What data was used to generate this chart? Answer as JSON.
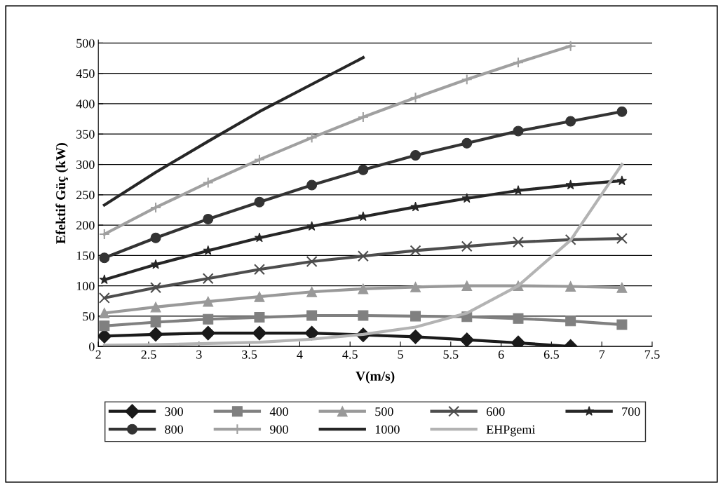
{
  "chart_data": {
    "type": "line",
    "xlabel": "V(m/s)",
    "ylabel": "Efektif Güç (kW)",
    "x": [
      2.06,
      2.57,
      3.09,
      3.6,
      4.12,
      4.63,
      5.15,
      5.66,
      6.17,
      6.69,
      7.2
    ],
    "xlim": [
      2,
      7.5
    ],
    "xticks": [
      2,
      2.5,
      3,
      3.5,
      4,
      4.5,
      5,
      5.5,
      6,
      6.5,
      7,
      7.5
    ],
    "ylim": [
      0,
      505
    ],
    "yticks": [
      0,
      50,
      100,
      150,
      200,
      250,
      300,
      350,
      400,
      450,
      500
    ],
    "grid": "y",
    "legend": "bottom",
    "series": [
      {
        "name": "300",
        "color": "#1a1a1a",
        "marker": "diamond",
        "values": [
          17,
          20,
          22,
          22,
          22,
          19,
          16,
          11,
          6,
          0,
          null
        ]
      },
      {
        "name": "400",
        "color": "#808080",
        "marker": "square",
        "values": [
          34,
          40,
          45,
          48,
          51,
          51,
          50,
          49,
          46,
          42,
          36
        ]
      },
      {
        "name": "500",
        "color": "#999999",
        "marker": "triangle",
        "values": [
          55,
          65,
          74,
          82,
          90,
          95,
          98,
          100,
          100,
          99,
          97
        ]
      },
      {
        "name": "600",
        "color": "#4d4d4d",
        "marker": "cross",
        "values": [
          80,
          97,
          112,
          127,
          140,
          149,
          158,
          165,
          172,
          176,
          178
        ]
      },
      {
        "name": "700",
        "color": "#262626",
        "marker": "star",
        "values": [
          110,
          135,
          158,
          179,
          198,
          214,
          230,
          244,
          257,
          266,
          273
        ]
      },
      {
        "name": "800",
        "color": "#333333",
        "marker": "circle",
        "values": [
          146,
          179,
          210,
          238,
          266,
          291,
          315,
          335,
          355,
          371,
          387
        ]
      },
      {
        "name": "900",
        "color": "#a0a0a0",
        "marker": "plus",
        "values": [
          185,
          229,
          270,
          308,
          344,
          378,
          410,
          440,
          468,
          495,
          null
        ]
      },
      {
        "name": "1000",
        "color": "#262626",
        "marker": "none",
        "values": [
          233,
          287,
          338,
          387,
          432,
          476,
          null,
          null,
          null,
          null,
          null
        ]
      },
      {
        "name": "EHPgemi",
        "color": "#b3b3b3",
        "marker": "none",
        "values": [
          2,
          3,
          5,
          7,
          12,
          20,
          32,
          55,
          100,
          175,
          300
        ]
      }
    ]
  }
}
